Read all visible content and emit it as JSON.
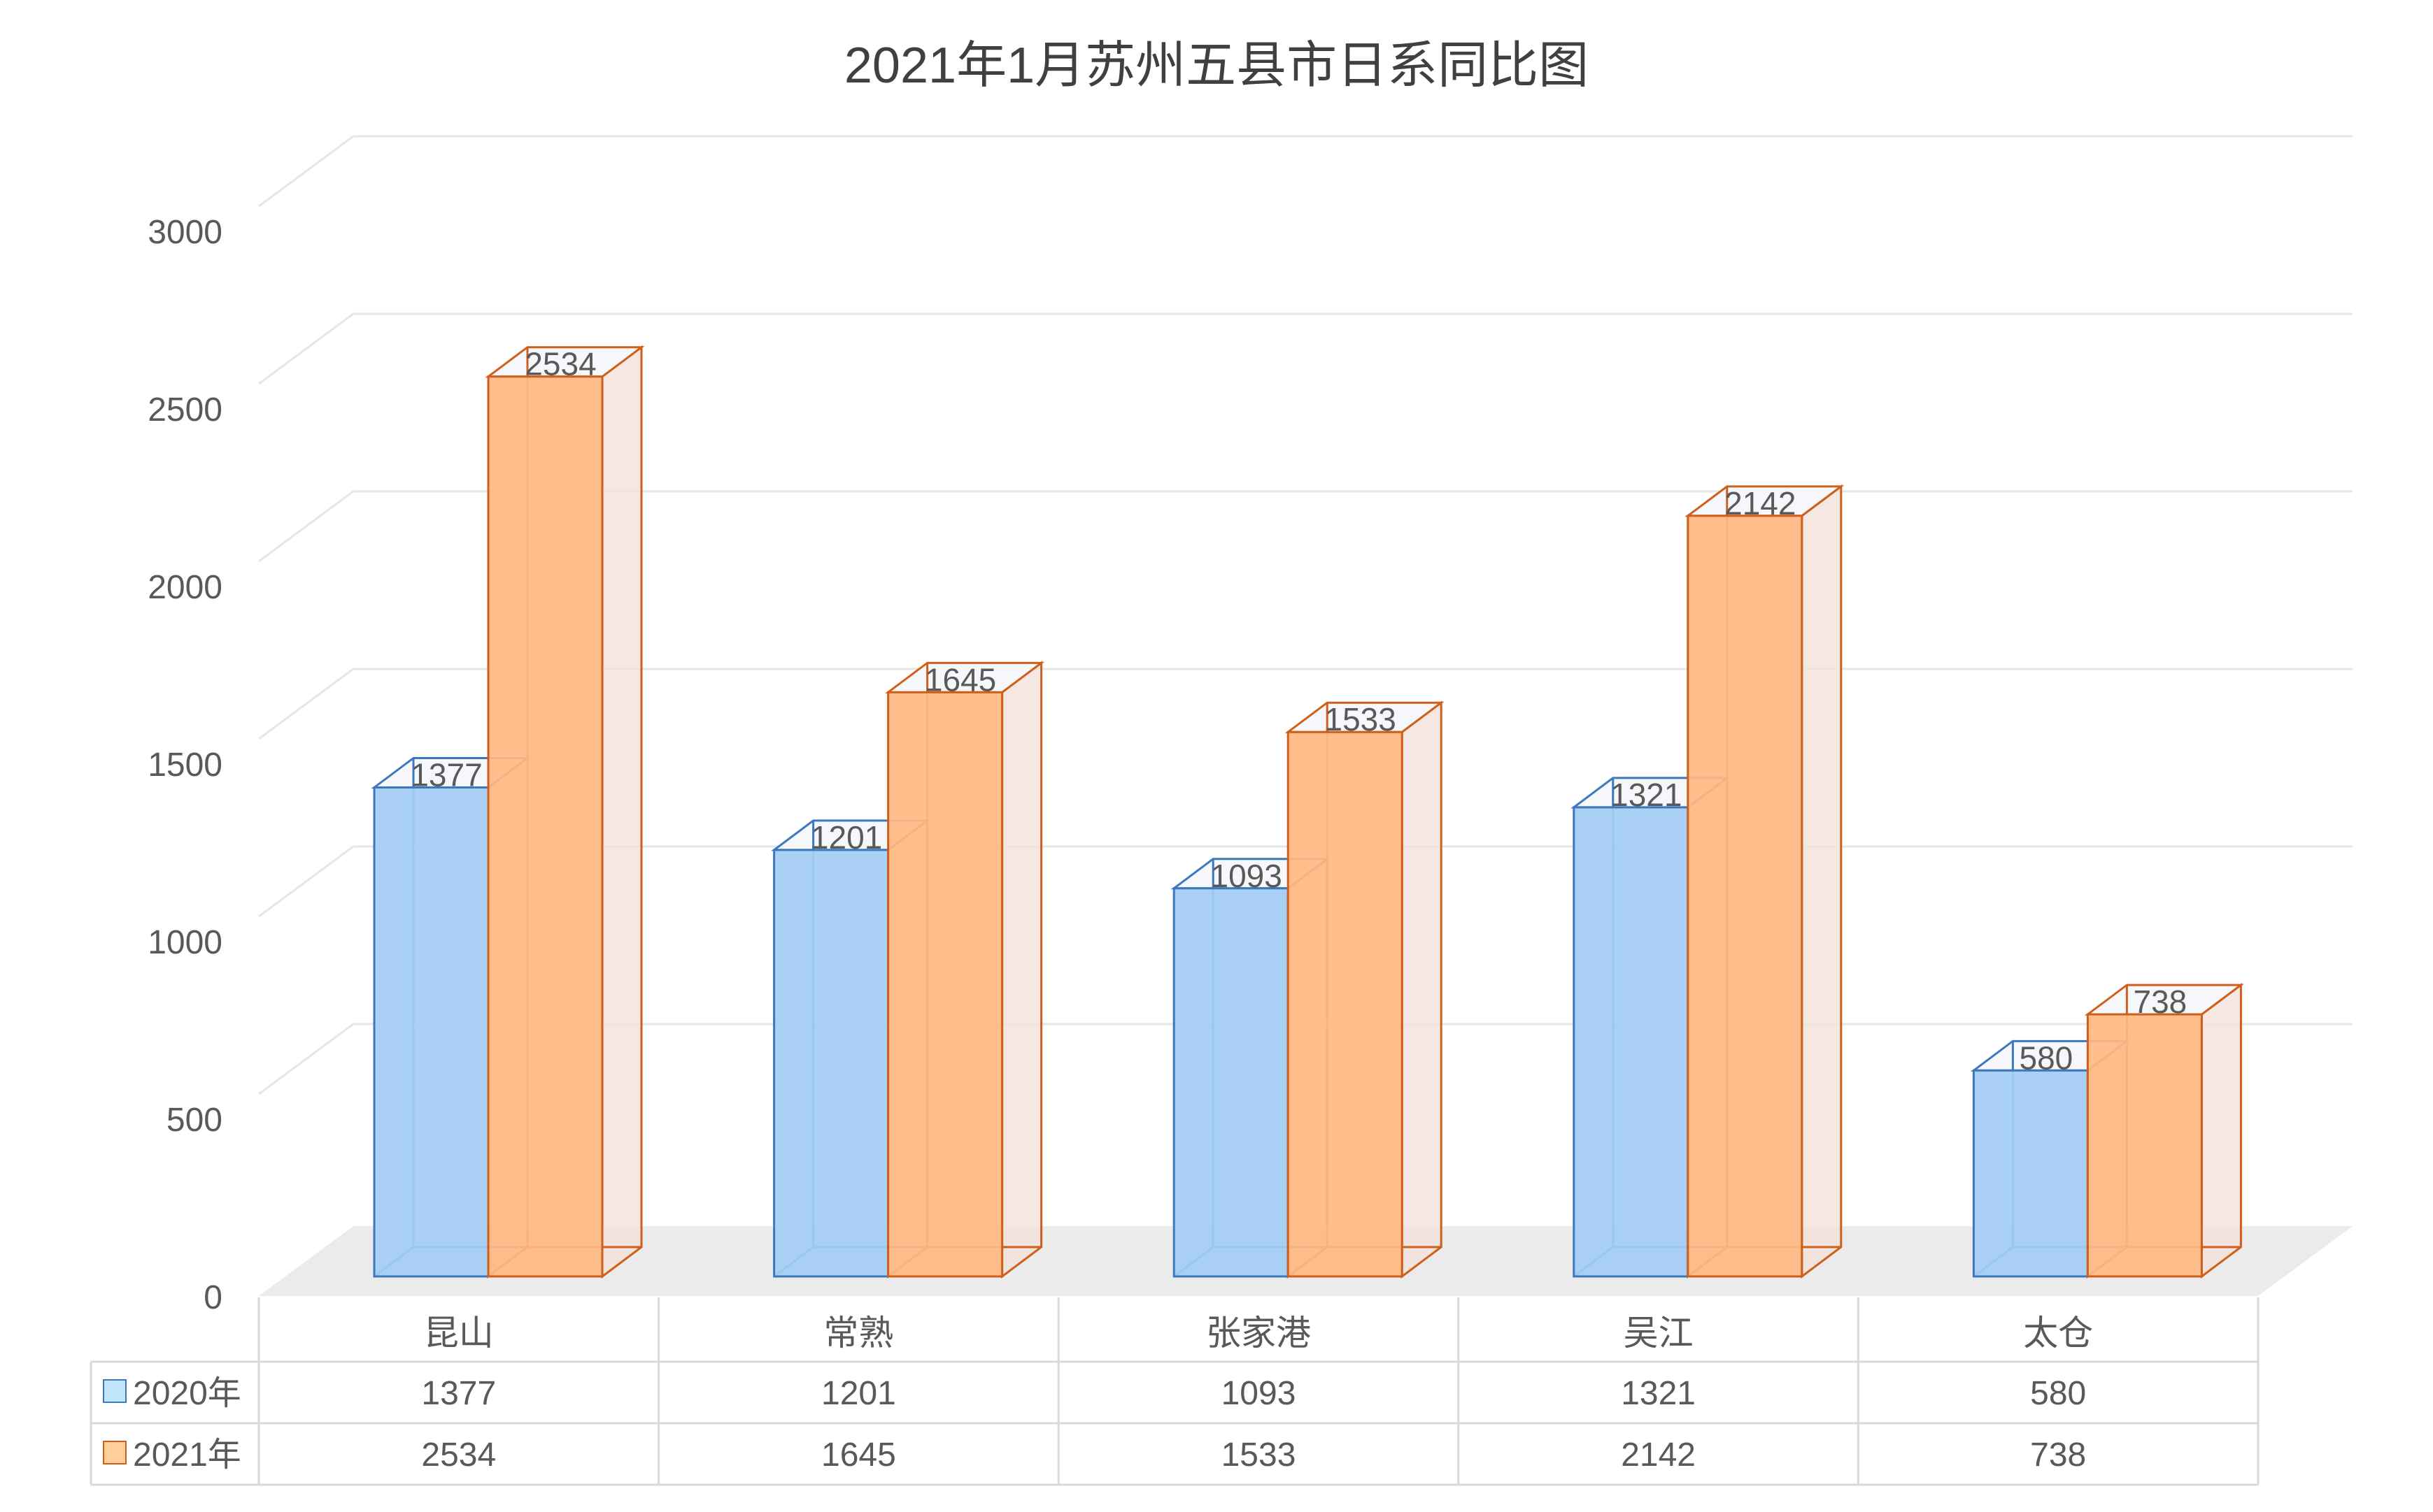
{
  "chart_data": {
    "type": "bar",
    "title": "2021年1月苏州五县市日系同比图",
    "categories": [
      "昆山",
      "常熟",
      "张家港",
      "吴江",
      "太仓"
    ],
    "series": [
      {
        "name": "2020年",
        "values": [
          1377,
          1201,
          1093,
          1321,
          580
        ],
        "color": "#a3cdf4",
        "stroke": "#3d78bd",
        "marker_color": "#bfe6fa"
      },
      {
        "name": "2021年",
        "values": [
          2534,
          1645,
          1533,
          2142,
          738
        ],
        "color": "#ffb882",
        "stroke": "#cf5f1a",
        "marker_color": "#ffcf99"
      }
    ],
    "yticks": [
      "0",
      "500",
      "1000",
      "1500",
      "2000",
      "2500",
      "3000"
    ],
    "ylim": [
      0,
      3000
    ],
    "grid": true,
    "data_table": true,
    "colors": {
      "grid": "#e6e6e6",
      "floor": "#ebebeb",
      "side_face": "#f2e2dc",
      "text": "#595959",
      "title": "#404040"
    }
  }
}
